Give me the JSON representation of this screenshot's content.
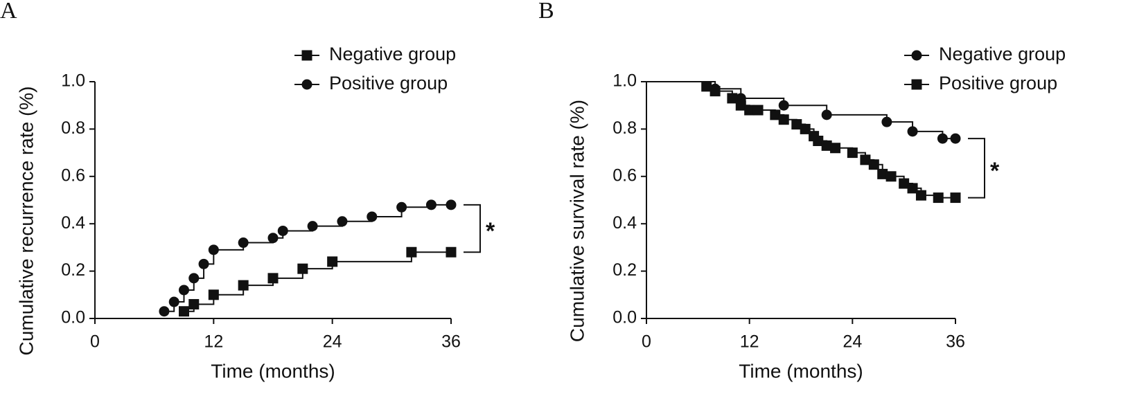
{
  "chart_data": [
    {
      "type": "step",
      "panel_label": "A",
      "x_label": "Time (months)",
      "y_label": "Cumulative recurrence rate (%)",
      "xlim": [
        0,
        36
      ],
      "ylim": [
        0,
        1
      ],
      "xticks": [
        0,
        12,
        24,
        36
      ],
      "yticks": [
        {
          "value": 0,
          "label": "0.0"
        },
        {
          "value": 0.2,
          "label": "0.2"
        },
        {
          "value": 0.4,
          "label": "0.4"
        },
        {
          "value": 0.6,
          "label": "0.6"
        },
        {
          "value": 0.8,
          "label": "0.8"
        },
        {
          "value": 1,
          "label": "1.0"
        }
      ],
      "start_at_full": false,
      "annotation": "*",
      "series": [
        {
          "name": "Negative group",
          "color": "#111111",
          "marker": "square",
          "x": [
            9,
            10,
            12,
            15,
            18,
            21,
            24,
            32,
            36
          ],
          "values": [
            0.03,
            0.06,
            0.1,
            0.14,
            0.17,
            0.21,
            0.24,
            0.28,
            0.28
          ]
        },
        {
          "name": "Positive group",
          "color": "#111111",
          "marker": "circle",
          "x": [
            7,
            8,
            9,
            10,
            11,
            12,
            15,
            18,
            19,
            22,
            25,
            28,
            31,
            34,
            36
          ],
          "values": [
            0.03,
            0.07,
            0.12,
            0.17,
            0.23,
            0.29,
            0.32,
            0.34,
            0.37,
            0.39,
            0.41,
            0.43,
            0.47,
            0.48,
            0.48
          ]
        }
      ]
    },
    {
      "type": "step",
      "panel_label": "B",
      "x_label": "Time (months)",
      "y_label": "Cumulative survival rate (%)",
      "xlim": [
        0,
        36
      ],
      "ylim": [
        0,
        1
      ],
      "xticks": [
        0,
        12,
        24,
        36
      ],
      "yticks": [
        {
          "value": 0,
          "label": "0.0"
        },
        {
          "value": 0.2,
          "label": "0.2"
        },
        {
          "value": 0.4,
          "label": "0.4"
        },
        {
          "value": 0.6,
          "label": "0.6"
        },
        {
          "value": 0.8,
          "label": "0.8"
        },
        {
          "value": 1,
          "label": "1.0"
        }
      ],
      "start_at_full": true,
      "annotation": "*",
      "series": [
        {
          "name": "Negative group",
          "color": "#111111",
          "marker": "circle",
          "x": [
            8,
            11,
            16,
            21,
            28,
            31,
            34.5,
            36
          ],
          "values": [
            0.97,
            0.93,
            0.9,
            0.86,
            0.83,
            0.79,
            0.76,
            0.76
          ]
        },
        {
          "name": "Positive group",
          "color": "#111111",
          "marker": "square",
          "x": [
            7,
            8,
            10,
            11,
            12,
            13,
            15,
            16,
            17.5,
            18.5,
            19.5,
            20,
            21,
            22,
            24,
            25.5,
            26.5,
            27.5,
            28.5,
            30,
            31,
            32,
            34,
            36
          ],
          "values": [
            0.98,
            0.96,
            0.93,
            0.9,
            0.88,
            0.88,
            0.86,
            0.84,
            0.82,
            0.8,
            0.77,
            0.75,
            0.73,
            0.72,
            0.7,
            0.67,
            0.65,
            0.61,
            0.6,
            0.57,
            0.55,
            0.52,
            0.51,
            0.51
          ]
        }
      ]
    }
  ]
}
